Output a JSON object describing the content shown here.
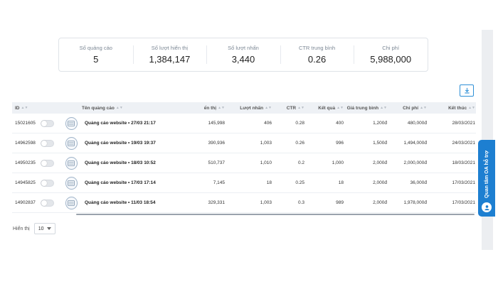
{
  "summary": [
    {
      "label": "Số quảng cáo",
      "value": "5"
    },
    {
      "label": "Số lượt hiển thị",
      "value": "1,384,147"
    },
    {
      "label": "Số lượt nhấn",
      "value": "3,440"
    },
    {
      "label": "CTR trung bình",
      "value": "0.26"
    },
    {
      "label": "Chi phí",
      "value": "5,988,000"
    }
  ],
  "table": {
    "headers": {
      "id": "ID",
      "name": "Tên quảng cáo",
      "impressions": "ển thị",
      "clicks": "Lượt nhấn",
      "ctr": "CTR",
      "results": "Kết quả",
      "avg_price": "Giá trung bình",
      "cost": "Chi phí",
      "end": "Kết thúc"
    },
    "rows": [
      {
        "id": "15021605",
        "name": "Quảng cáo website • 27/03 21:17",
        "impressions": "145,998",
        "clicks": "406",
        "ctr": "0.28",
        "results": "400",
        "avg_price": "1,200đ",
        "cost": "480,000đ",
        "end": "28/03/2021"
      },
      {
        "id": "14962598",
        "name": "Quảng cáo website • 19/03 19:37",
        "impressions": "390,936",
        "clicks": "1,003",
        "ctr": "0.26",
        "results": "996",
        "avg_price": "1,500đ",
        "cost": "1,494,000đ",
        "end": "24/03/2021"
      },
      {
        "id": "14950235",
        "name": "Quảng cáo website • 18/03 10:52",
        "impressions": "510,737",
        "clicks": "1,010",
        "ctr": "0.2",
        "results": "1,000",
        "avg_price": "2,000đ",
        "cost": "2,000,000đ",
        "end": "18/03/2021"
      },
      {
        "id": "14945825",
        "name": "Quảng cáo website • 17/03 17:14",
        "impressions": "7,145",
        "clicks": "18",
        "ctr": "0.25",
        "results": "18",
        "avg_price": "2,000đ",
        "cost": "36,000đ",
        "end": "17/03/2021"
      },
      {
        "id": "14902837",
        "name": "Quảng cáo website • 11/03 18:54",
        "impressions": "329,331",
        "clicks": "1,003",
        "ctr": "0.3",
        "results": "989",
        "avg_price": "2,000đ",
        "cost": "1,978,000đ",
        "end": "17/03/2021"
      }
    ]
  },
  "pager": {
    "label": "Hiển thị",
    "value": "10"
  },
  "side_tab": {
    "label": "Quan tâm OA hỗ trợ"
  },
  "colors": {
    "accent": "#1d7fd1",
    "header_bg": "#eef1f5",
    "border": "#dfe3e8"
  },
  "icons": {
    "download": "download-icon",
    "ad_thumb": "ad-thumbnail-icon",
    "support": "chat-support-icon",
    "sort": "sort-icon",
    "dropdown": "caret-down-icon"
  }
}
